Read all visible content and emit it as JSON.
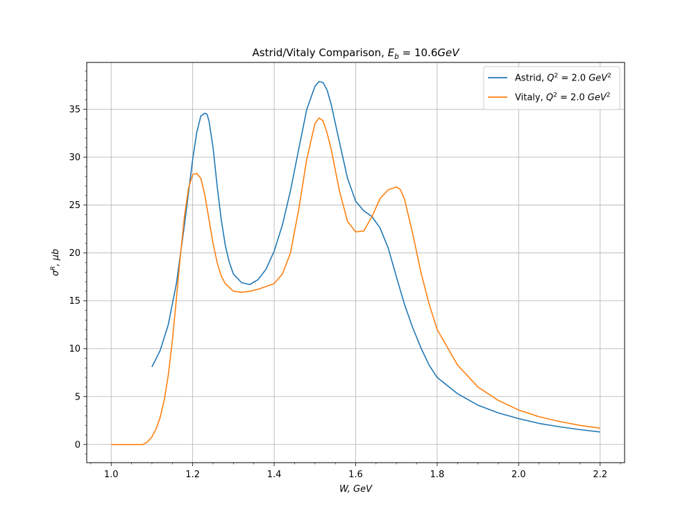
{
  "chart_data": {
    "type": "line",
    "title": "Astrid/Vitaly Comparison, ",
    "title_math": {
      "var": "E",
      "sub": "b",
      "rest": " = 10.6",
      "unit": "GeV"
    },
    "xlabel": "W, GeV",
    "ylabel": "σ^R, μb",
    "xlim": [
      0.94,
      2.26
    ],
    "ylim": [
      -1.9,
      39.9
    ],
    "x_ticks": [
      1.0,
      1.2,
      1.4,
      1.6,
      1.8,
      2.0,
      2.2
    ],
    "x_tick_labels": [
      "1.0",
      "1.2",
      "1.4",
      "1.6",
      "1.8",
      "2.0",
      "2.2"
    ],
    "y_ticks": [
      0,
      5,
      10,
      15,
      20,
      25,
      30,
      35
    ],
    "y_tick_labels": [
      "0",
      "5",
      "10",
      "15",
      "20",
      "25",
      "30",
      "35"
    ],
    "grid": true,
    "legend_position": "upper right",
    "legend": [
      {
        "name": "Astrid",
        "q_label": "Q² = 2.0 GeV²"
      },
      {
        "name": "Vitaly",
        "q_label": "Q² = 2.0 GeV²"
      }
    ],
    "colors": {
      "Astrid": "#1f77b4",
      "Vitaly": "#ff7f0e"
    },
    "series": [
      {
        "name": "Astrid",
        "x": [
          1.1,
          1.12,
          1.14,
          1.16,
          1.18,
          1.2,
          1.21,
          1.22,
          1.23,
          1.235,
          1.24,
          1.25,
          1.26,
          1.27,
          1.28,
          1.29,
          1.3,
          1.32,
          1.34,
          1.36,
          1.38,
          1.4,
          1.42,
          1.44,
          1.46,
          1.48,
          1.5,
          1.51,
          1.52,
          1.53,
          1.54,
          1.56,
          1.58,
          1.6,
          1.62,
          1.64,
          1.66,
          1.68,
          1.7,
          1.72,
          1.74,
          1.76,
          1.78,
          1.8,
          1.85,
          1.9,
          1.95,
          2.0,
          2.05,
          2.1,
          2.15,
          2.2
        ],
        "y": [
          8.1,
          9.8,
          12.5,
          16.8,
          23.0,
          29.8,
          32.6,
          34.3,
          34.6,
          34.5,
          33.8,
          31.0,
          27.0,
          23.5,
          20.8,
          19.0,
          17.8,
          16.9,
          16.7,
          17.2,
          18.3,
          20.2,
          22.9,
          26.5,
          30.8,
          35.0,
          37.4,
          37.9,
          37.8,
          37.0,
          35.5,
          31.6,
          27.8,
          25.4,
          24.4,
          23.8,
          22.6,
          20.5,
          17.5,
          14.6,
          12.2,
          10.1,
          8.3,
          7.0,
          5.3,
          4.1,
          3.3,
          2.7,
          2.2,
          1.85,
          1.55,
          1.3
        ]
      },
      {
        "name": "Vitaly",
        "x": [
          1.0,
          1.04,
          1.078,
          1.09,
          1.1,
          1.11,
          1.12,
          1.13,
          1.14,
          1.15,
          1.16,
          1.17,
          1.18,
          1.19,
          1.2,
          1.21,
          1.22,
          1.23,
          1.24,
          1.25,
          1.26,
          1.27,
          1.28,
          1.3,
          1.32,
          1.34,
          1.36,
          1.38,
          1.4,
          1.42,
          1.44,
          1.46,
          1.48,
          1.5,
          1.51,
          1.52,
          1.53,
          1.54,
          1.56,
          1.58,
          1.6,
          1.62,
          1.64,
          1.66,
          1.68,
          1.7,
          1.71,
          1.72,
          1.74,
          1.76,
          1.78,
          1.8,
          1.85,
          1.9,
          1.95,
          2.0,
          2.05,
          2.1,
          2.15,
          2.2
        ],
        "y": [
          0.0,
          0.0,
          0.0,
          0.3,
          0.8,
          1.6,
          2.8,
          4.6,
          7.2,
          10.8,
          15.2,
          19.8,
          23.9,
          26.8,
          28.2,
          28.3,
          27.8,
          26.0,
          23.5,
          21.0,
          19.0,
          17.6,
          16.8,
          16.0,
          15.9,
          16.0,
          16.2,
          16.5,
          16.8,
          17.8,
          20.0,
          24.5,
          29.8,
          33.5,
          34.1,
          33.8,
          32.5,
          30.8,
          26.5,
          23.3,
          22.2,
          22.3,
          23.8,
          25.7,
          26.6,
          26.9,
          26.6,
          25.6,
          22.0,
          18.0,
          14.7,
          12.0,
          8.3,
          6.0,
          4.6,
          3.6,
          2.9,
          2.4,
          2.0,
          1.7
        ]
      }
    ]
  }
}
